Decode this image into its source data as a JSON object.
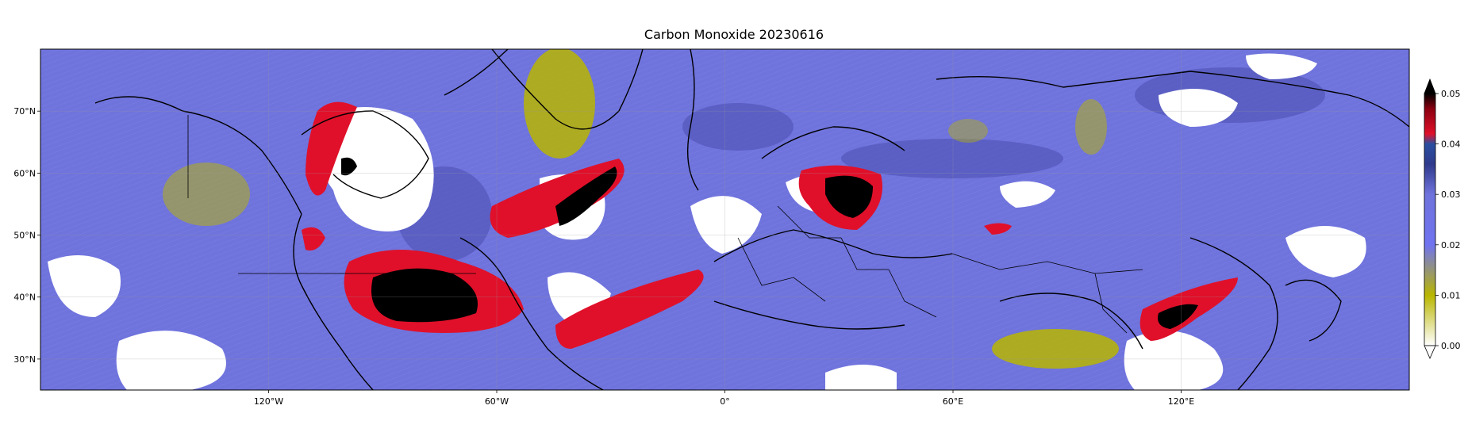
{
  "title": "Carbon Monoxide 20230616",
  "map": {
    "lon_range": [
      -180,
      180
    ],
    "lat_range": [
      25,
      80
    ],
    "lon_ticks": [
      {
        "value": -120,
        "label": "120°W"
      },
      {
        "value": -60,
        "label": "60°W"
      },
      {
        "value": 0,
        "label": "0°"
      },
      {
        "value": 60,
        "label": "60°E"
      },
      {
        "value": 120,
        "label": "120°E"
      }
    ],
    "lat_ticks": [
      {
        "value": 30,
        "label": "30°N"
      },
      {
        "value": 40,
        "label": "40°N"
      },
      {
        "value": 50,
        "label": "50°N"
      },
      {
        "value": 60,
        "label": "60°N"
      },
      {
        "value": 70,
        "label": "70°N"
      }
    ],
    "background_color": "#6f73dc"
  },
  "colorbar": {
    "min": 0.0,
    "max": 0.05,
    "ticks": [
      {
        "value": 0.0,
        "label": "0.00"
      },
      {
        "value": 0.01,
        "label": "0.01"
      },
      {
        "value": 0.02,
        "label": "0.02"
      },
      {
        "value": 0.03,
        "label": "0.03"
      },
      {
        "value": 0.04,
        "label": "0.04"
      },
      {
        "value": 0.05,
        "label": "0.05"
      }
    ],
    "stops": [
      {
        "value": 0.0,
        "color": "#ffffff"
      },
      {
        "value": 0.01,
        "color": "#b9b600"
      },
      {
        "value": 0.02,
        "color": "#6f73f0"
      },
      {
        "value": 0.03,
        "color": "#6f73dc"
      },
      {
        "value": 0.036,
        "color": "#2f3a8c"
      },
      {
        "value": 0.04,
        "color": "#2a4fa0"
      },
      {
        "value": 0.042,
        "color": "#e0102a"
      },
      {
        "value": 0.047,
        "color": "#8a0010"
      },
      {
        "value": 0.05,
        "color": "#000000"
      }
    ],
    "extend": "both"
  }
}
